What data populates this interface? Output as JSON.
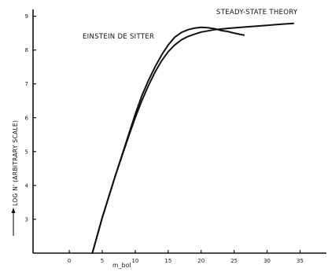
{
  "chart_data": {
    "type": "line",
    "title": "",
    "xlabel": "m_bol",
    "ylabel": "LOG N' (ARBITRARY SCALE)",
    "x_ticks": [
      "0",
      "5",
      "10",
      "15",
      "20",
      "25",
      "30",
      "35"
    ],
    "y_ticks": [
      "3",
      "4",
      "5",
      "6",
      "7",
      "8",
      "9"
    ],
    "xlim": [
      -5.5,
      39
    ],
    "ylim": [
      2,
      9.2
    ],
    "grid": false,
    "series": [
      {
        "name": "EINSTEIN DE SITTER",
        "x": [
          3.5,
          5,
          7,
          9,
          10,
          11,
          12,
          13,
          14,
          15,
          16,
          17,
          18,
          19,
          20,
          21,
          22,
          23,
          24,
          25,
          26,
          26.5
        ],
        "y": [
          2.0,
          3.05,
          4.3,
          5.5,
          6.1,
          6.65,
          7.1,
          7.5,
          7.85,
          8.15,
          8.38,
          8.52,
          8.6,
          8.65,
          8.67,
          8.66,
          8.63,
          8.58,
          8.55,
          8.5,
          8.46,
          8.44
        ]
      },
      {
        "name": "STEADY-STATE THEORY",
        "x": [
          3.5,
          5,
          7,
          9,
          10,
          11,
          12,
          13,
          14,
          15,
          16,
          17,
          18,
          19,
          20,
          22,
          24,
          26,
          28,
          30,
          32,
          34
        ],
        "y": [
          2.0,
          3.05,
          4.3,
          5.45,
          6.0,
          6.5,
          6.95,
          7.35,
          7.68,
          7.95,
          8.15,
          8.3,
          8.4,
          8.47,
          8.53,
          8.6,
          8.64,
          8.67,
          8.7,
          8.73,
          8.76,
          8.79
        ]
      }
    ]
  }
}
